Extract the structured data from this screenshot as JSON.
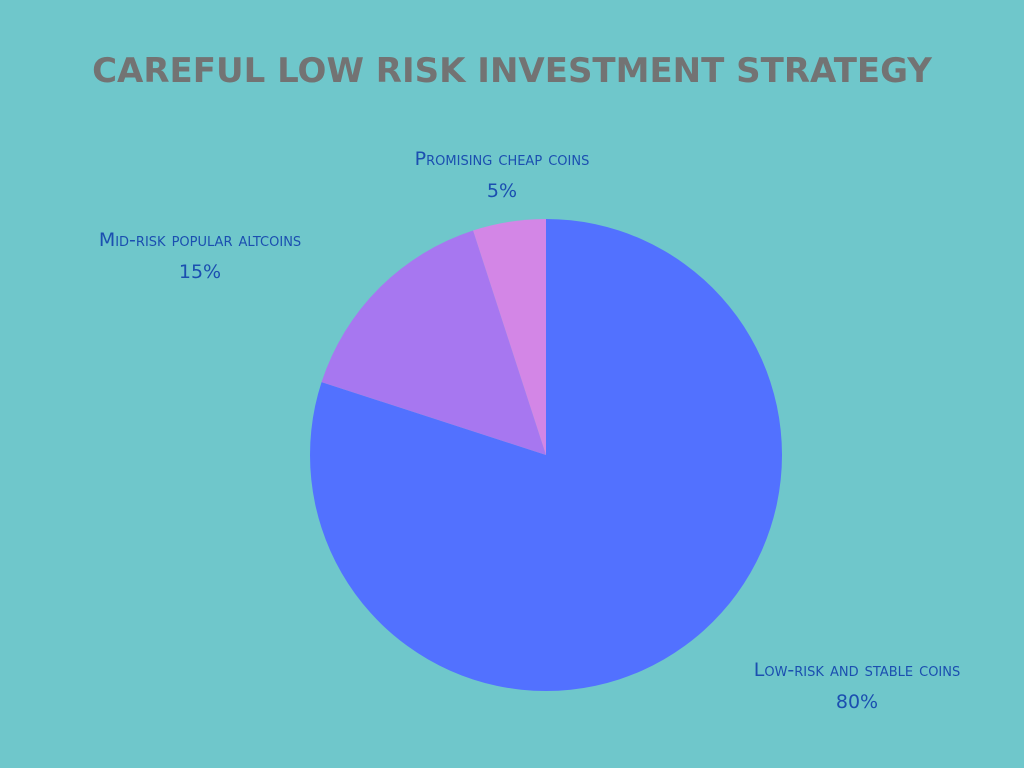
{
  "chart_data": {
    "type": "pie",
    "title": "CAREFUL LOW RISK INVESTMENT STRATEGY",
    "categories": [
      "Low-risk and stable coins",
      "Mid-risk popular altcoins",
      "Promising cheap coins"
    ],
    "values": [
      80,
      15,
      5
    ],
    "value_labels": [
      "80%",
      "15%",
      "5%"
    ],
    "colors": [
      "#5271ff",
      "#a777f0",
      "#d386e6"
    ]
  }
}
